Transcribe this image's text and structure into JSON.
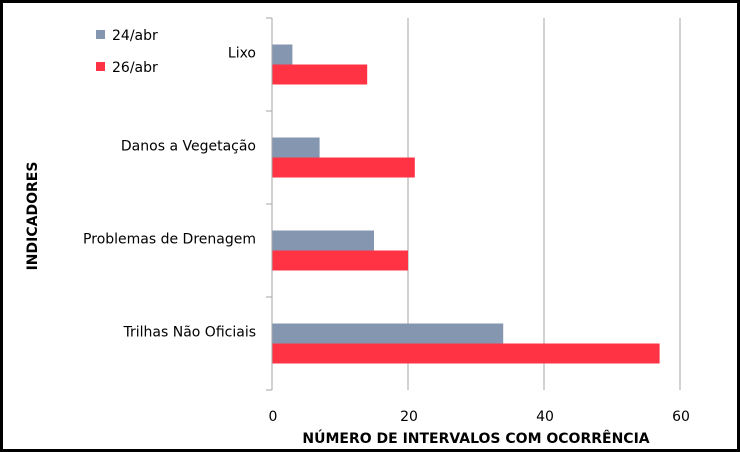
{
  "chart_data": {
    "type": "bar",
    "orientation": "horizontal",
    "categories": [
      "Lixo",
      "Danos a Vegetação",
      "Problemas de Drenagem",
      "Trilhas Não Oficiais"
    ],
    "series": [
      {
        "name": "24/abr",
        "color": "#8496b0",
        "values": [
          3,
          7,
          15,
          34
        ]
      },
      {
        "name": "26/abr",
        "color": "#ff3344",
        "values": [
          14,
          21,
          20,
          57
        ]
      }
    ],
    "xlabel": "NÚMERO DE INTERVALOS COM OCORRÊNCIA",
    "ylabel": "INDICADORES",
    "xlim": [
      0,
      60
    ],
    "xticks": [
      "0",
      "20",
      "40",
      "60"
    ],
    "grid": "vertical",
    "legend_position": "top-left"
  }
}
